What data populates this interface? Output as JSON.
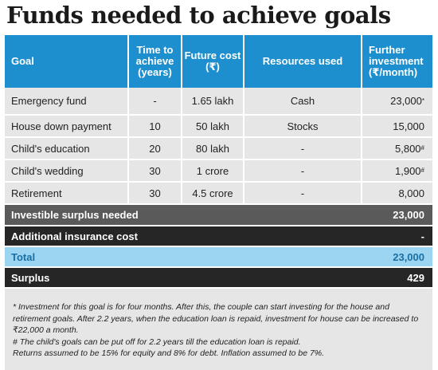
{
  "title": "Funds needed to achieve goals",
  "headers": {
    "goal": "Goal",
    "time": "Time to achieve (years)",
    "cost": "Future cost (₹)",
    "resources": "Resources used",
    "investment": "Further investment (₹/month)"
  },
  "rows": [
    {
      "goal": "Emergency fund",
      "time": "-",
      "cost": "1.65 lakh",
      "resources": "Cash",
      "investment": "23,000",
      "mark": "*"
    },
    {
      "goal": "House down payment",
      "time": "10",
      "cost": "50 lakh",
      "resources": "Stocks",
      "investment": "15,000",
      "mark": ""
    },
    {
      "goal": "Child's education",
      "time": "20",
      "cost": "80 lakh",
      "resources": "-",
      "investment": "5,800",
      "mark": "#"
    },
    {
      "goal": "Child's wedding",
      "time": "30",
      "cost": "1 crore",
      "resources": "-",
      "investment": "1,900",
      "mark": "#"
    },
    {
      "goal": "Retirement",
      "time": "30",
      "cost": "4.5 crore",
      "resources": "-",
      "investment": "8,000",
      "mark": ""
    }
  ],
  "summary": {
    "surplus_needed_label": "Investible surplus needed",
    "surplus_needed_value": "23,000",
    "insurance_label": "Additional insurance cost",
    "insurance_value": "-",
    "total_label": "Total",
    "total_value": "23,000",
    "surplus_label": "Surplus",
    "surplus_value": "429"
  },
  "notes": {
    "n1": "* Investment for this goal is for four months. After this, the couple can start investing for the house and retirement goals. After 2.2 years, when the education loan is repaid, investment for house can be increased to ₹22,000 a month.",
    "n2": "# The child's goals can be put off for 2.2 years till the education loan is repaid.",
    "n3": "Returns assumed to be 15% for equity and 8% for debt. Inflation assumed to be 7%."
  },
  "colors": {
    "header": "#1e8fce",
    "row": "#e6e6e6",
    "grey_bar": "#5a5a5a",
    "dark_bar": "#262626",
    "total_bar": "#9cd5f2",
    "total_text": "#1a6fa3"
  }
}
